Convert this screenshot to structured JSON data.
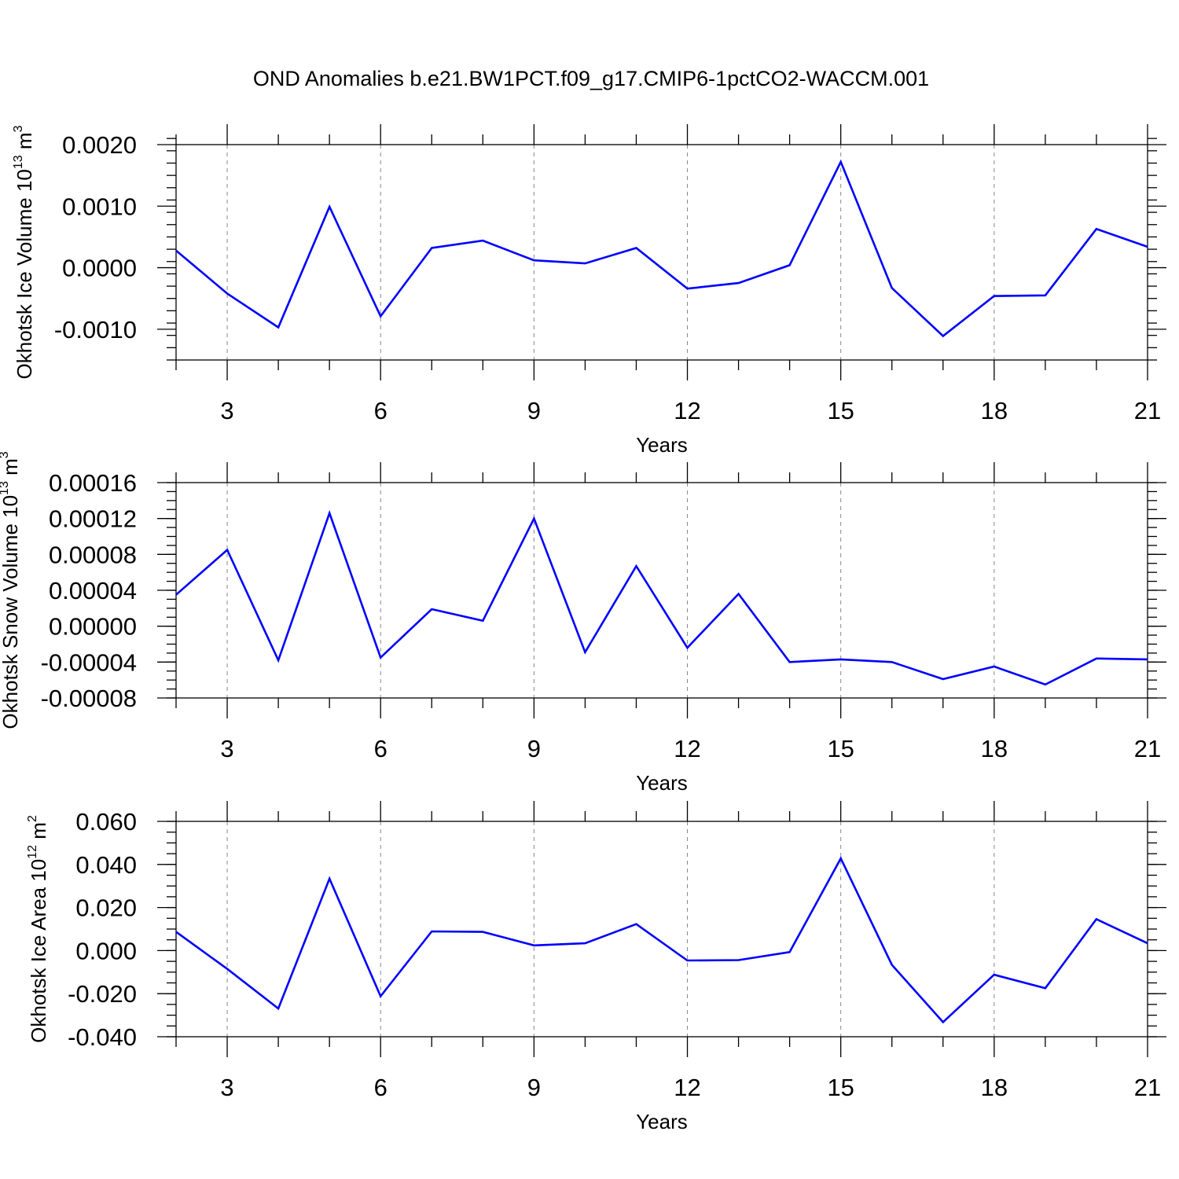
{
  "page_title": "OND Anomalies b.e21.BW1PCT.f09_g17.CMIP6-1pctCO2-WACCM.001",
  "colors": {
    "series": "#0000ff",
    "grid": "#888888",
    "axes": "#000000"
  },
  "chart_data": [
    {
      "type": "line",
      "ylabel_main": "Okhotsk Ice Volume 10",
      "ylabel_exp": "13",
      "ylabel_unit": " m",
      "ylabel_unit_exp": "3",
      "xlabel": "Years",
      "xlim": [
        2,
        21
      ],
      "ylim": [
        -0.0015,
        0.002
      ],
      "x_ticks": [
        3,
        6,
        9,
        12,
        15,
        18,
        21
      ],
      "x_tick_labels": [
        "3",
        "6",
        "9",
        "12",
        "15",
        "18",
        "21"
      ],
      "y_ticks": [
        0.002,
        0.001,
        0.0,
        -0.001
      ],
      "y_tick_labels": [
        "0.0020",
        "0.0010",
        "0.0000",
        "-0.0010"
      ],
      "y_minor_step": 0.0002,
      "x": [
        2,
        3,
        4,
        5,
        6,
        7,
        8,
        9,
        10,
        11,
        12,
        13,
        14,
        15,
        16,
        17,
        18,
        19,
        20,
        21
      ],
      "values": [
        0.00028,
        -0.00042,
        -0.00097,
        0.00099,
        -0.00079,
        0.00032,
        0.00044,
        0.00012,
        7e-05,
        0.00032,
        -0.00034,
        -0.00025,
        4e-05,
        0.00172,
        -0.00033,
        -0.00111,
        -0.00046,
        -0.00045,
        0.00063,
        0.00034
      ],
      "grid": "vertical dashed at major x ticks"
    },
    {
      "type": "line",
      "ylabel_main": "Okhotsk Snow Volume 10",
      "ylabel_exp": "13",
      "ylabel_unit": " m",
      "ylabel_unit_exp": "3",
      "xlabel": "Years",
      "xlim": [
        2,
        21
      ],
      "ylim": [
        -8e-05,
        0.00016
      ],
      "x_ticks": [
        3,
        6,
        9,
        12,
        15,
        18,
        21
      ],
      "x_tick_labels": [
        "3",
        "6",
        "9",
        "12",
        "15",
        "18",
        "21"
      ],
      "y_ticks": [
        0.00016,
        0.00012,
        8e-05,
        4e-05,
        0.0,
        -4e-05,
        -8e-05
      ],
      "y_tick_labels": [
        "0.00016",
        "0.00012",
        "0.00008",
        "0.00004",
        "0.00000",
        "-0.00004",
        "-0.00008"
      ],
      "y_minor_step": 1e-05,
      "x": [
        2,
        3,
        4,
        5,
        6,
        7,
        8,
        9,
        10,
        11,
        12,
        13,
        14,
        15,
        16,
        17,
        18,
        19,
        20,
        21
      ],
      "values": [
        3.5e-05,
        8.5e-05,
        -3.8e-05,
        0.000126,
        -3.5e-05,
        1.9e-05,
        6e-06,
        0.00012,
        -2.9e-05,
        6.7e-05,
        -2.4e-05,
        3.6e-05,
        -4e-05,
        -3.7e-05,
        -4e-05,
        -5.9e-05,
        -4.5e-05,
        -6.5e-05,
        -3.6e-05,
        -3.7e-05
      ],
      "grid": "vertical dashed at major x ticks"
    },
    {
      "type": "line",
      "ylabel_main": "Okhotsk Ice Area 10",
      "ylabel_exp": "12",
      "ylabel_unit": " m",
      "ylabel_unit_exp": "2",
      "xlabel": "Years",
      "xlim": [
        2,
        21
      ],
      "ylim": [
        -0.04,
        0.06
      ],
      "x_ticks": [
        3,
        6,
        9,
        12,
        15,
        18,
        21
      ],
      "x_tick_labels": [
        "3",
        "6",
        "9",
        "12",
        "15",
        "18",
        "21"
      ],
      "y_ticks": [
        0.06,
        0.04,
        0.02,
        0.0,
        -0.02,
        -0.04
      ],
      "y_tick_labels": [
        "0.060",
        "0.040",
        "0.020",
        "0.000",
        "-0.020",
        "-0.040"
      ],
      "y_minor_step": 0.005,
      "x": [
        2,
        3,
        4,
        5,
        6,
        7,
        8,
        9,
        10,
        11,
        12,
        13,
        14,
        15,
        16,
        17,
        18,
        19,
        20,
        21
      ],
      "values": [
        0.0087,
        -0.0085,
        -0.0269,
        0.0334,
        -0.0212,
        0.0089,
        0.0087,
        0.0024,
        0.0034,
        0.0123,
        -0.0046,
        -0.0044,
        -0.0007,
        0.0428,
        -0.0066,
        -0.0332,
        -0.0112,
        -0.0175,
        0.0146,
        0.0034
      ],
      "grid": "vertical dashed at major x ticks"
    }
  ]
}
